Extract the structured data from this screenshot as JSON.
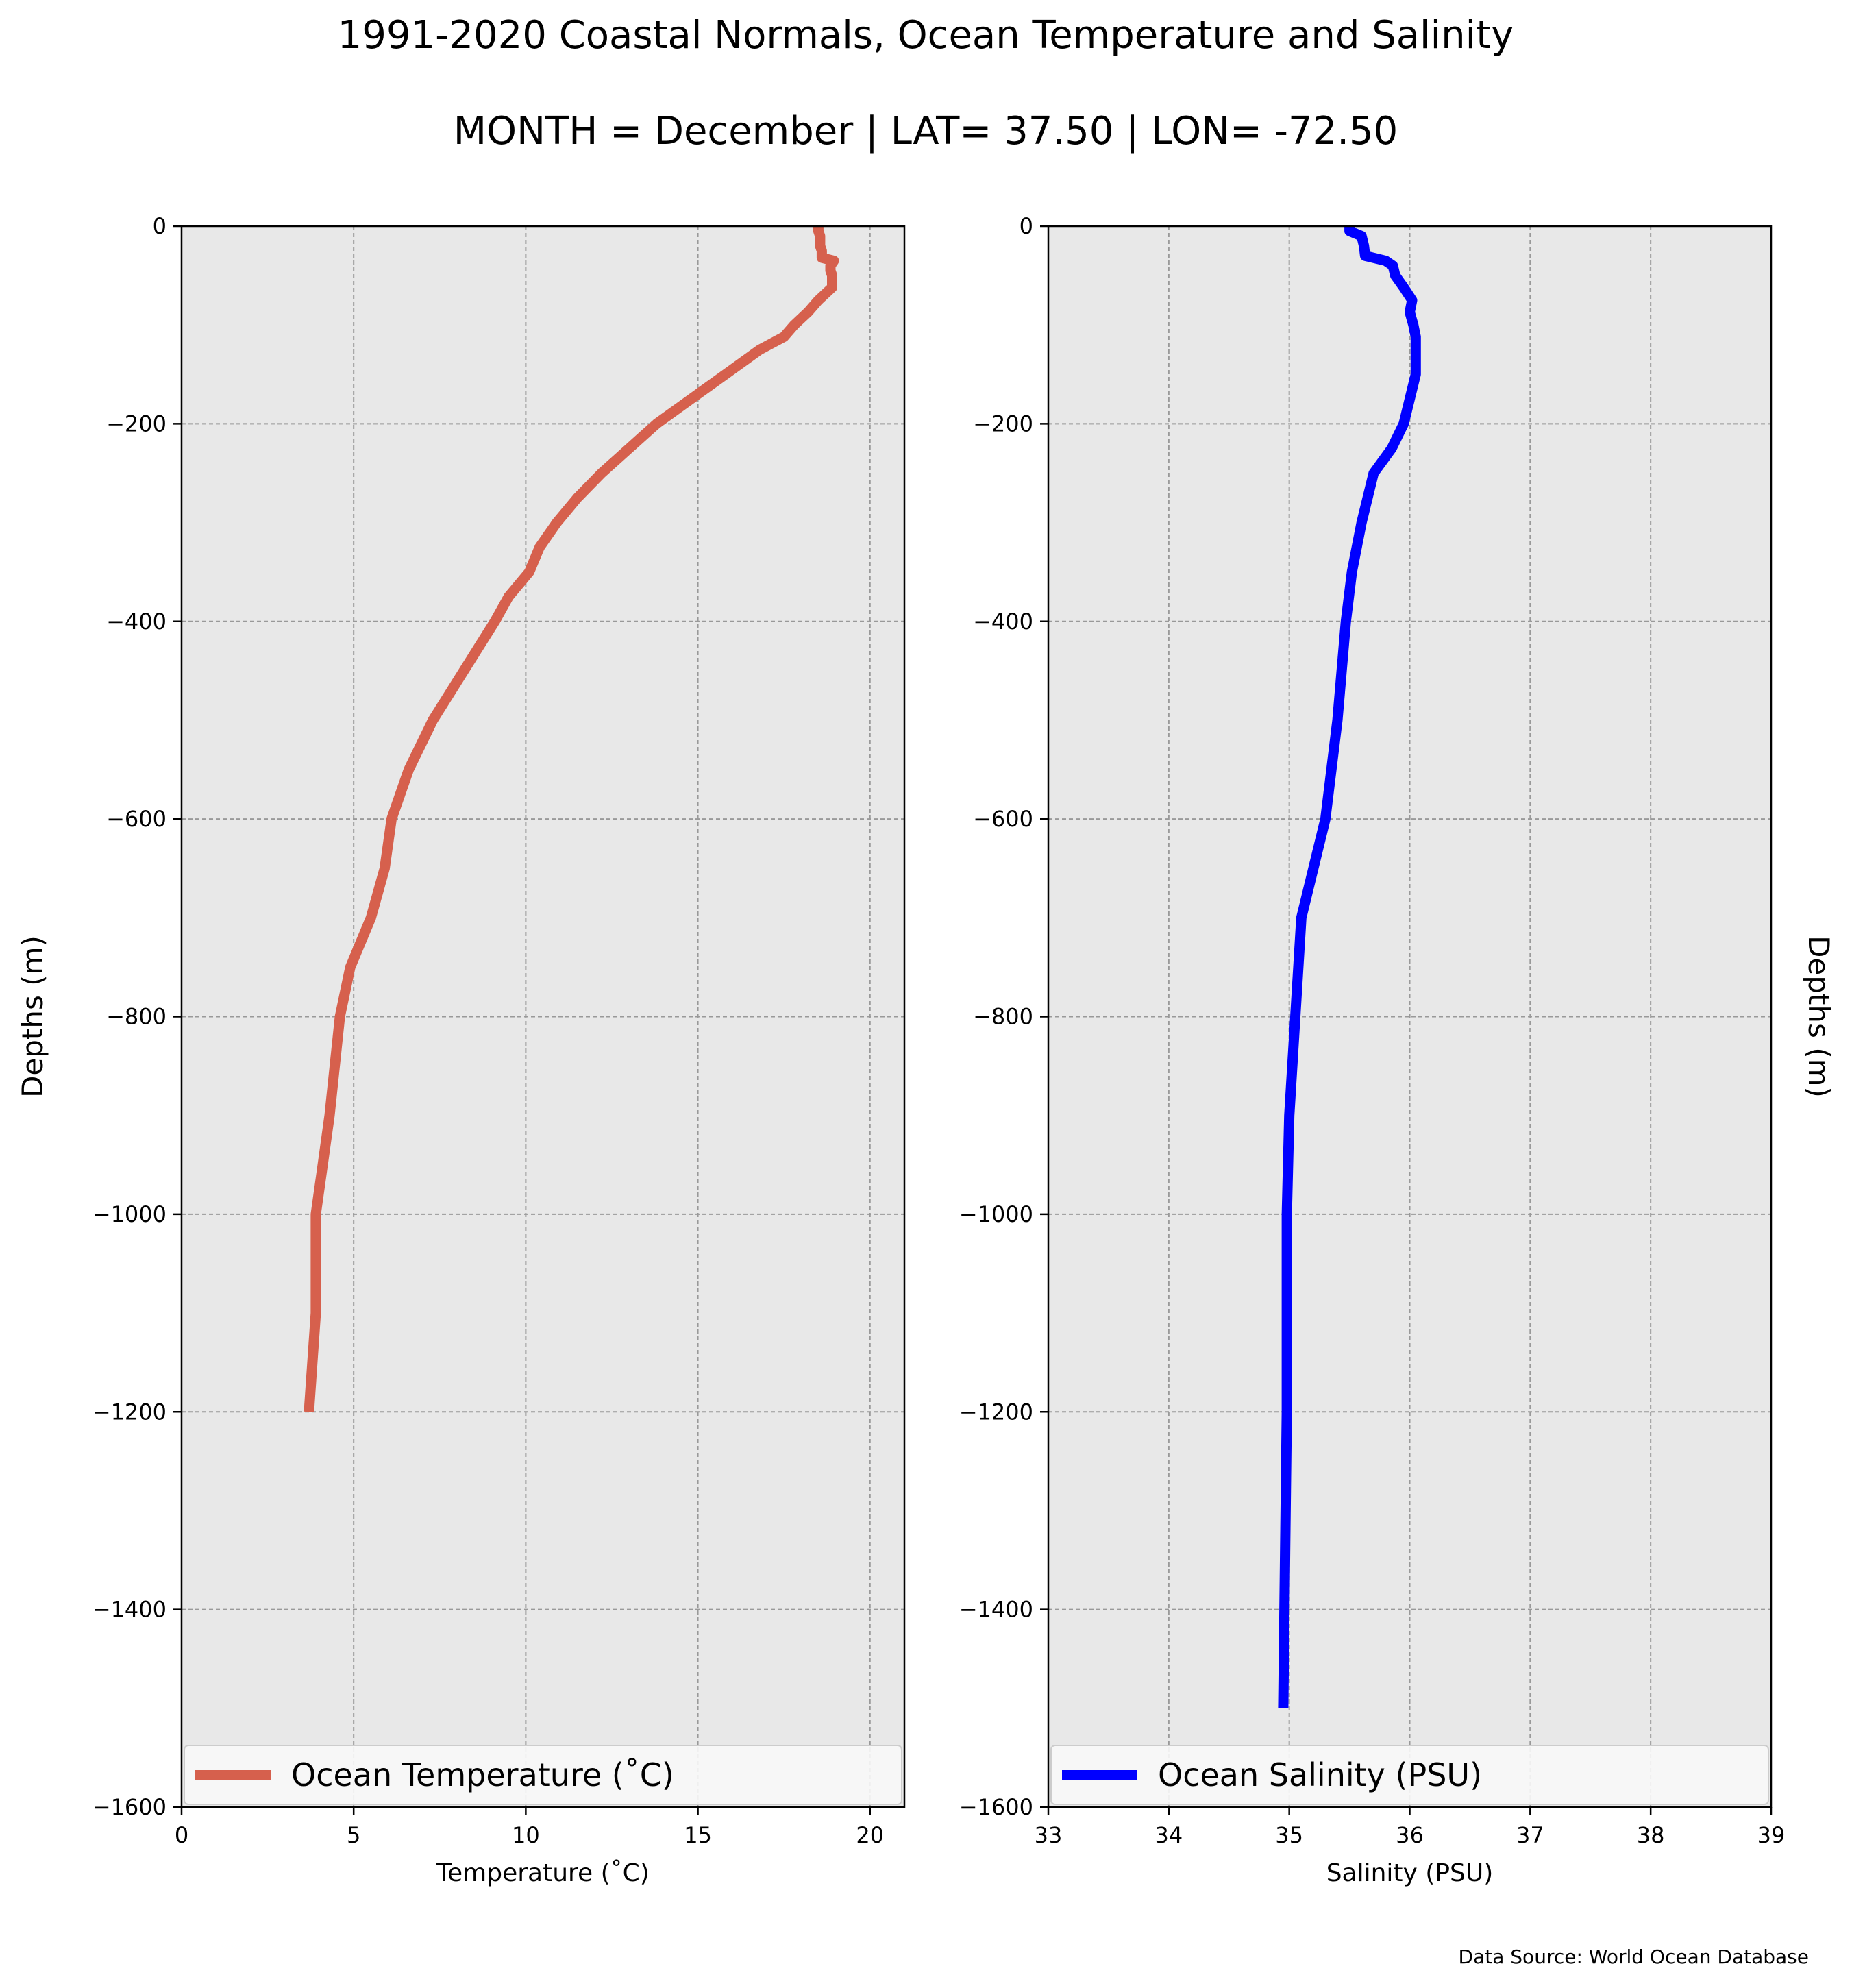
{
  "titles": {
    "line1": "1991-2020 Coastal Normals, Ocean Temperature and Salinity",
    "line2": "MONTH = December | LAT= 37.50 | LON= -72.50"
  },
  "source_note": "Data Source: World Ocean Database",
  "chart_data": [
    {
      "type": "line",
      "xlabel": "Temperature ($^\\circ$C)",
      "xlabel_display": "Temperature (˚C)",
      "ylabel": "Depths (m)",
      "xlim": [
        0,
        21
      ],
      "ylim": [
        -1600,
        0
      ],
      "xticks": [
        0,
        5,
        10,
        15,
        20
      ],
      "yticks": [
        0,
        -200,
        -400,
        -600,
        -800,
        -1000,
        -1200,
        -1400,
        -1600
      ],
      "ytick_labels": [
        "0",
        "−200",
        "−400",
        "−600",
        "−800",
        "−1000",
        "−1200",
        "−1400",
        "−1600"
      ],
      "grid": true,
      "legend_position": "lower",
      "series": [
        {
          "name": "Ocean Temperature (˚C)",
          "color": "#d6604d",
          "x": [
            18.5,
            18.5,
            18.55,
            18.55,
            18.55,
            18.6,
            18.6,
            18.6,
            18.95,
            18.85,
            18.85,
            18.9,
            18.9,
            18.5,
            18.2,
            17.8,
            17.5,
            16.8,
            15.8,
            14.8,
            13.8,
            13.0,
            12.2,
            11.5,
            10.9,
            10.4,
            10.1,
            9.5,
            9.1,
            8.2,
            7.3,
            6.6,
            6.1,
            5.9,
            5.5,
            4.9,
            4.6,
            4.3,
            4.1,
            3.9,
            3.9,
            3.7
          ],
          "y": [
            0,
            -5,
            -10,
            -15,
            -20,
            -25,
            -30,
            -32,
            -35,
            -40,
            -45,
            -50,
            -62,
            -75,
            -87,
            -100,
            -112,
            -125,
            -150,
            -175,
            -200,
            -225,
            -250,
            -275,
            -300,
            -325,
            -350,
            -375,
            -400,
            -450,
            -500,
            -550,
            -600,
            -650,
            -700,
            -750,
            -800,
            -900,
            -950,
            -1000,
            -1100,
            -1200
          ]
        }
      ]
    },
    {
      "type": "line",
      "xlabel": "Salinity (PSU)",
      "ylabel": "Depths (m)",
      "xlim": [
        33,
        39
      ],
      "ylim": [
        -1600,
        0
      ],
      "xticks": [
        33,
        34,
        35,
        36,
        37,
        38,
        39
      ],
      "yticks": [
        0,
        -200,
        -400,
        -600,
        -800,
        -1000,
        -1200,
        -1400,
        -1600
      ],
      "ytick_labels": [
        "0",
        "−200",
        "−400",
        "−600",
        "−800",
        "−1000",
        "−1200",
        "−1400",
        "−1600"
      ],
      "grid": true,
      "legend_position": "lower",
      "series": [
        {
          "name": "Ocean Salinity (PSU)",
          "color": "#0000ff",
          "x": [
            35.5,
            35.5,
            35.6,
            35.62,
            35.63,
            35.8,
            35.86,
            35.88,
            35.95,
            36.02,
            36.0,
            36.03,
            36.05,
            36.05,
            36.05,
            36.0,
            35.95,
            35.85,
            35.7,
            35.6,
            35.52,
            35.47,
            35.4,
            35.3,
            35.1,
            35.05,
            35.0,
            34.98,
            34.98,
            34.95
          ],
          "y": [
            0,
            -5,
            -10,
            -20,
            -30,
            -35,
            -40,
            -50,
            -62,
            -75,
            -87,
            -100,
            -112,
            -125,
            -150,
            -175,
            -200,
            -225,
            -250,
            -300,
            -350,
            -400,
            -500,
            -600,
            -700,
            -800,
            -900,
            -1000,
            -1200,
            -1500
          ]
        }
      ]
    }
  ]
}
